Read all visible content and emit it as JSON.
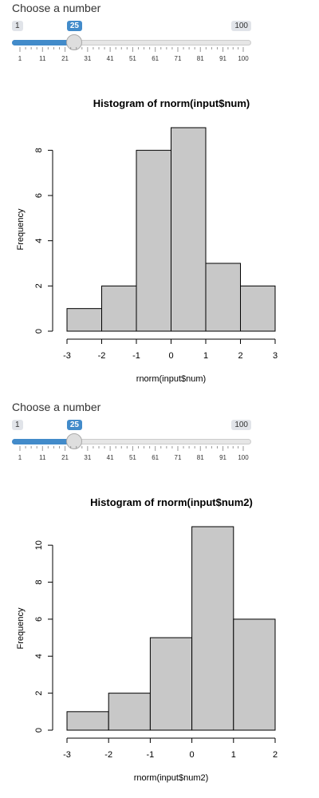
{
  "panels": [
    {
      "label": "Choose a number",
      "slider": {
        "min": 1,
        "max": 100,
        "value": 25,
        "min_label": "1",
        "max_label": "100",
        "value_label": "25",
        "grid_labels": [
          "1",
          "11",
          "21",
          "31",
          "41",
          "51",
          "61",
          "71",
          "81",
          "91",
          "100"
        ],
        "accent": "#428bca"
      },
      "chart_data": {
        "type": "bar",
        "title": "Histogram of rnorm(input$num)",
        "xlabel": "rnorm(input$num)",
        "ylabel": "Frequency",
        "bins": [
          [
            -3,
            -2
          ],
          [
            -2,
            -1
          ],
          [
            -1,
            0
          ],
          [
            0,
            1
          ],
          [
            1,
            2
          ],
          [
            2,
            3
          ]
        ],
        "values": [
          1,
          2,
          8,
          9,
          3,
          2
        ],
        "xlim": [
          -3,
          3
        ],
        "ylim": [
          0,
          9
        ],
        "x_ticks": [
          "-3",
          "-2",
          "-1",
          "0",
          "1",
          "2",
          "3"
        ],
        "y_ticks": [
          "0",
          "2",
          "4",
          "6",
          "8"
        ],
        "bar_color": "#c8c8c8"
      }
    },
    {
      "label": "Choose a number",
      "slider": {
        "min": 1,
        "max": 100,
        "value": 25,
        "min_label": "1",
        "max_label": "100",
        "value_label": "25",
        "grid_labels": [
          "1",
          "11",
          "21",
          "31",
          "41",
          "51",
          "61",
          "71",
          "81",
          "91",
          "100"
        ],
        "accent": "#428bca"
      },
      "chart_data": {
        "type": "bar",
        "title": "Histogram of rnorm(input$num2)",
        "xlabel": "rnorm(input$num2)",
        "ylabel": "Frequency",
        "bins": [
          [
            -3,
            -2
          ],
          [
            -2,
            -1
          ],
          [
            -1,
            0
          ],
          [
            0,
            1
          ],
          [
            1,
            2
          ]
        ],
        "values": [
          1,
          2,
          5,
          11,
          6
        ],
        "xlim": [
          -3,
          2
        ],
        "ylim": [
          0,
          11
        ],
        "x_ticks": [
          "-3",
          "-2",
          "-1",
          "0",
          "1",
          "2"
        ],
        "y_ticks": [
          "0",
          "2",
          "4",
          "6",
          "8",
          "10"
        ],
        "bar_color": "#c8c8c8"
      }
    }
  ]
}
